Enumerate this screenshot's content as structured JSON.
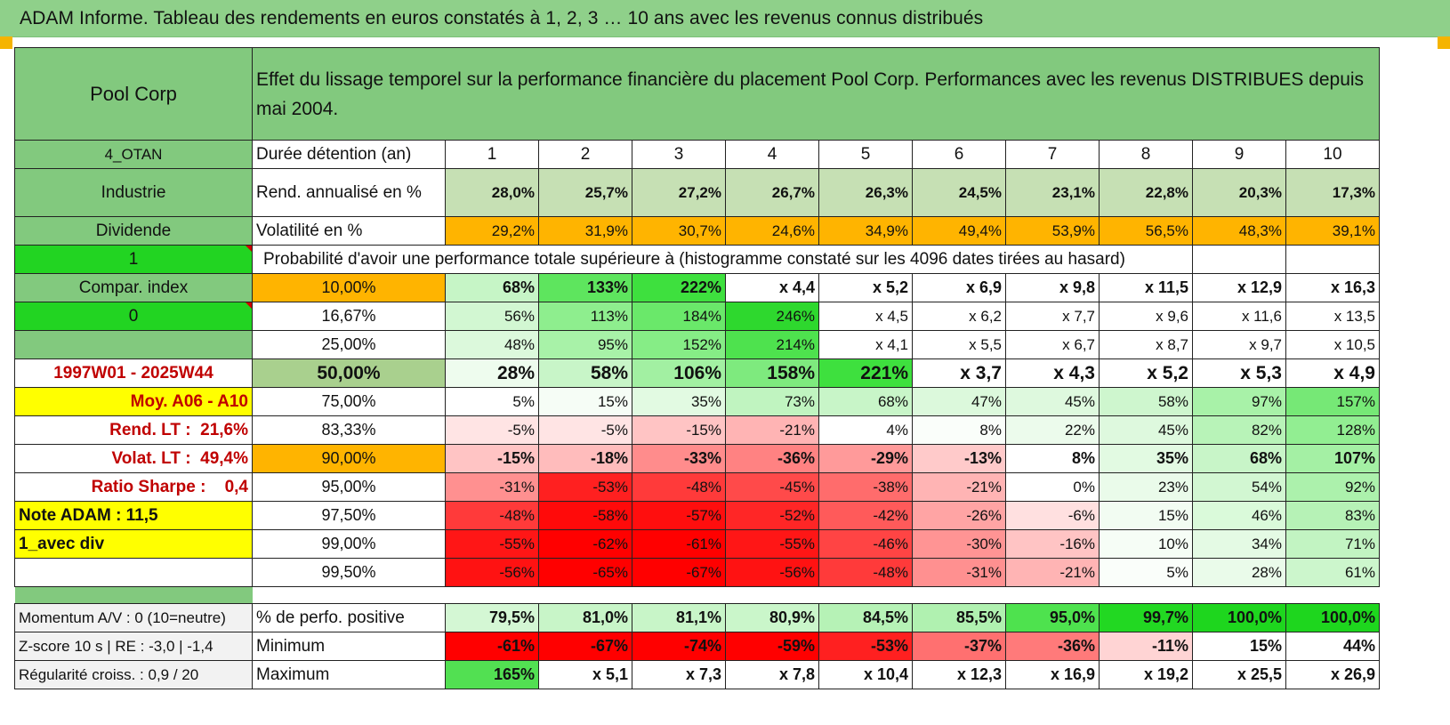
{
  "title": "ADAM Informe. Tableau des rendements en euros constatés à 1, 2, 3 … 10 ans avec les revenus connus distribués",
  "header": {
    "asset": "Pool Corp",
    "description": "Effet du lissage temporel sur la performance financière du placement Pool Corp. Performances avec les revenus DISTRIBUES depuis mai 2004."
  },
  "side": {
    "code": "4_OTAN",
    "sector": "Industrie",
    "mode": "Dividende",
    "flag1": "1",
    "compar_index": "Compar. index",
    "flag2": "0",
    "period": "1997W01 - 2025W44",
    "moy": "Moy. A06 - A10",
    "rend_label": "Rend. LT :",
    "rend_value": "21,6%",
    "volat_label": "Volat. LT :",
    "volat_value": "49,4%",
    "sharpe_label": "Ratio Sharpe :",
    "sharpe_value": "0,4",
    "note": "Note ADAM : 11,5",
    "avec_div": "1_avec div"
  },
  "years_label": "Durée détention (an)",
  "years": [
    "1",
    "2",
    "3",
    "4",
    "5",
    "6",
    "7",
    "8",
    "9",
    "10"
  ],
  "rend": {
    "label": "Rend. annualisé en %",
    "values": [
      "28,0%",
      "25,7%",
      "27,2%",
      "26,7%",
      "26,3%",
      "24,5%",
      "23,1%",
      "22,8%",
      "20,3%",
      "17,3%"
    ]
  },
  "vol": {
    "label": "Volatilité en %",
    "values": [
      "29,2%",
      "31,9%",
      "30,7%",
      "24,6%",
      "34,9%",
      "49,4%",
      "53,9%",
      "56,5%",
      "48,3%",
      "39,1%"
    ]
  },
  "prob_title": "Probabilité d'avoir une performance totale supérieure à (histogramme constaté sur les 4096 dates tirées au hasard)",
  "quantiles": [
    {
      "label": "10,00%",
      "values": [
        "68%",
        "133%",
        "222%",
        "x 4,4",
        "x 5,2",
        "x 6,9",
        "x 9,8",
        "x 11,5",
        "x 12,9",
        "x 16,3"
      ],
      "colors": [
        "#c6f5c6",
        "#5ee55e",
        "#3ee03e",
        "#ffffff",
        "#ffffff",
        "#ffffff",
        "#ffffff",
        "#ffffff",
        "#ffffff",
        "#ffffff"
      ]
    },
    {
      "label": "16,67%",
      "values": [
        "56%",
        "113%",
        "184%",
        "246%",
        "x 4,5",
        "x 6,2",
        "x 7,7",
        "x 9,6",
        "x 11,6",
        "x 13,5"
      ],
      "colors": [
        "#d2f7d2",
        "#8eee8e",
        "#6ae86a",
        "#2ed82e",
        "#ffffff",
        "#ffffff",
        "#ffffff",
        "#ffffff",
        "#ffffff",
        "#ffffff"
      ]
    },
    {
      "label": "25,00%",
      "values": [
        "48%",
        "95%",
        "152%",
        "214%",
        "x 4,1",
        "x 5,5",
        "x 6,7",
        "x 8,7",
        "x 9,7",
        "x 10,5"
      ],
      "colors": [
        "#dcf9dc",
        "#a8f2a8",
        "#86ed86",
        "#4ee24e",
        "#ffffff",
        "#ffffff",
        "#ffffff",
        "#ffffff",
        "#ffffff",
        "#ffffff"
      ]
    },
    {
      "label": "50,00%",
      "values": [
        "28%",
        "58%",
        "106%",
        "158%",
        "221%",
        "x 3,7",
        "x 4,3",
        "x 5,2",
        "x 5,3",
        "x 4,9"
      ],
      "colors": [
        "#eefcee",
        "#c8f5c8",
        "#a2f0a2",
        "#7eea7e",
        "#3ee03e",
        "#ffffff",
        "#ffffff",
        "#ffffff",
        "#ffffff",
        "#ffffff"
      ]
    },
    {
      "label": "75,00%",
      "values": [
        "5%",
        "15%",
        "35%",
        "73%",
        "68%",
        "47%",
        "45%",
        "58%",
        "97%",
        "157%"
      ],
      "colors": [
        "#ffffff",
        "#f6fdf6",
        "#e2fae2",
        "#c0f4c0",
        "#c8f5c8",
        "#dcf9dc",
        "#def9de",
        "#cef6ce",
        "#a8f2a8",
        "#76e876"
      ]
    },
    {
      "label": "83,33%",
      "values": [
        "-5%",
        "-5%",
        "-15%",
        "-21%",
        "4%",
        "8%",
        "22%",
        "45%",
        "82%",
        "128%"
      ],
      "colors": [
        "#ffe4e4",
        "#ffe4e4",
        "#ffc4c4",
        "#ffb4b4",
        "#ffffff",
        "#fafefa",
        "#ecfbec",
        "#def9de",
        "#b8f3b8",
        "#92ee92"
      ]
    },
    {
      "label": "90,00%",
      "values": [
        "-15%",
        "-18%",
        "-33%",
        "-36%",
        "-29%",
        "-13%",
        "8%",
        "35%",
        "68%",
        "107%"
      ],
      "colors": [
        "#ffc4c4",
        "#ffbcbc",
        "#ff8c8c",
        "#ff8282",
        "#ff9a9a",
        "#ffcaca",
        "#ffffff",
        "#e2fae2",
        "#c8f5c8",
        "#a4f0a4"
      ]
    },
    {
      "label": "95,00%",
      "values": [
        "-31%",
        "-53%",
        "-48%",
        "-45%",
        "-38%",
        "-21%",
        "0%",
        "23%",
        "54%",
        "92%"
      ],
      "colors": [
        "#ff9090",
        "#ff2020",
        "#ff3a3a",
        "#ff4a4a",
        "#ff6c6c",
        "#ffb4b4",
        "#ffffff",
        "#eafbea",
        "#d2f7d2",
        "#acf1ac"
      ]
    },
    {
      "label": "97,50%",
      "values": [
        "-48%",
        "-58%",
        "-57%",
        "-52%",
        "-42%",
        "-26%",
        "-6%",
        "15%",
        "46%",
        "83%"
      ],
      "colors": [
        "#ff3a3a",
        "#ff0a0a",
        "#ff0e0e",
        "#ff2626",
        "#ff5a5a",
        "#ffa4a4",
        "#ffe0e0",
        "#f2fcf2",
        "#dafada",
        "#b6f2b6"
      ]
    },
    {
      "label": "99,00%",
      "values": [
        "-55%",
        "-62%",
        "-61%",
        "-55%",
        "-46%",
        "-30%",
        "-16%",
        "10%",
        "34%",
        "71%"
      ],
      "colors": [
        "#ff1616",
        "#ff0000",
        "#ff0000",
        "#ff1616",
        "#ff4444",
        "#ff9494",
        "#ffc4c4",
        "#f6fdf6",
        "#e4fae4",
        "#c2f4c2"
      ]
    },
    {
      "label": "99,50%",
      "values": [
        "-56%",
        "-65%",
        "-67%",
        "-56%",
        "-48%",
        "-31%",
        "-21%",
        "5%",
        "28%",
        "61%"
      ],
      "colors": [
        "#ff1212",
        "#ff0000",
        "#ff0000",
        "#ff1212",
        "#ff3a3a",
        "#ff9090",
        "#ffb4b4",
        "#fafefa",
        "#eafbea",
        "#ccf6cc"
      ]
    }
  ],
  "footer": [
    {
      "left": "Momentum A/V : 0 (10=neutre)",
      "label": "% de perfo. positive",
      "values": [
        "79,5%",
        "81,0%",
        "81,1%",
        "80,9%",
        "84,5%",
        "85,5%",
        "95,0%",
        "99,7%",
        "100,0%",
        "100,0%"
      ],
      "colors": [
        "#d4f7d4",
        "#c8f5c8",
        "#c8f5c8",
        "#caf6ca",
        "#b6f2b6",
        "#b0f1b0",
        "#4ee24e",
        "#22d822",
        "#1ed61e",
        "#1ed61e"
      ]
    },
    {
      "left": "Z-score 10 s | RE : -3,0 | -1,4",
      "label": "Minimum",
      "values": [
        "-61%",
        "-67%",
        "-74%",
        "-59%",
        "-53%",
        "-37%",
        "-36%",
        "-11%",
        "15%",
        "44%"
      ],
      "colors": [
        "#ff0000",
        "#ff0000",
        "#ff0000",
        "#ff0000",
        "#ff2020",
        "#ff7070",
        "#ff7a7a",
        "#ffd4d4",
        "#ffffff",
        "#ffffff"
      ]
    },
    {
      "left": "Régularité croiss. : 0,9 / 20",
      "label": "Maximum",
      "values": [
        "165%",
        "x 5,1",
        "x 7,3",
        "x 7,8",
        "x 10,4",
        "x 12,3",
        "x 16,9",
        "x 19,2",
        "x 25,5",
        "x 26,9"
      ],
      "colors": [
        "#52e052",
        "#ffffff",
        "#ffffff",
        "#ffffff",
        "#ffffff",
        "#ffffff",
        "#ffffff",
        "#ffffff",
        "#ffffff",
        "#ffffff"
      ]
    }
  ],
  "colors": {
    "title_bg": "#8fd08a",
    "header_green": "#82c97e",
    "bright_green": "#22d422",
    "yellow": "#ffff00",
    "orange": "#ffb400",
    "olive": "#a9d08e",
    "light_green": "#c6e0b4"
  }
}
